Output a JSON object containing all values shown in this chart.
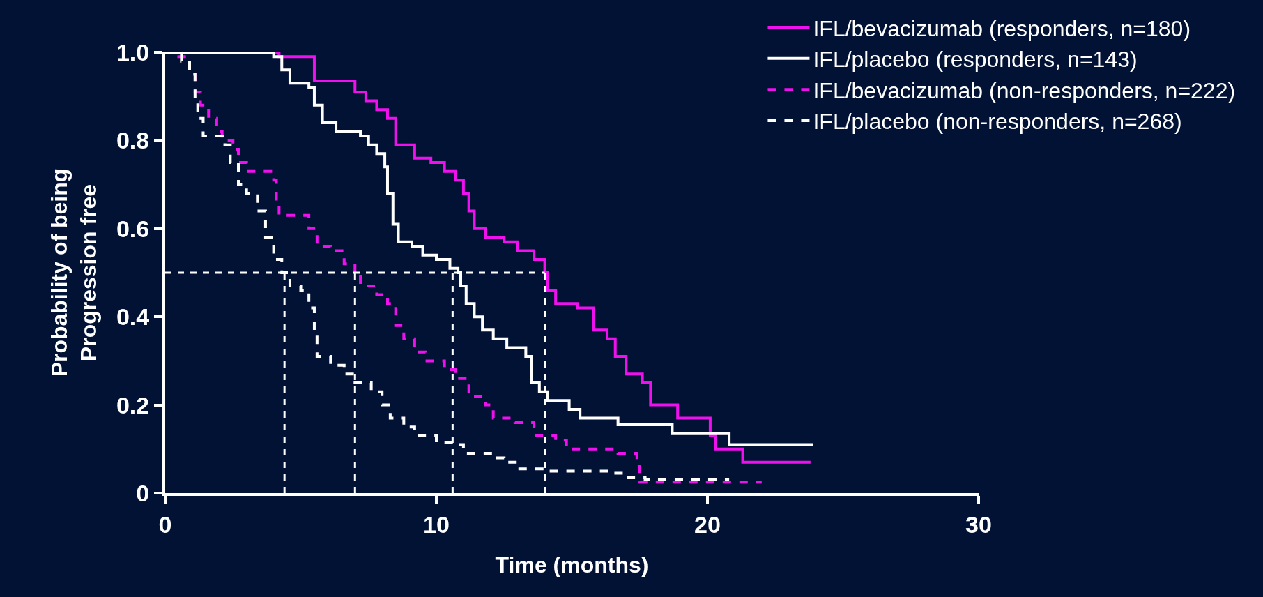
{
  "chart_data": {
    "type": "step",
    "xlabel": "Time (months)",
    "ylabel": "Probability of being\nProgression free",
    "xlim": [
      0,
      30
    ],
    "xticks": [
      0,
      10,
      20,
      30
    ],
    "ylim": [
      0,
      1.0
    ],
    "yticks": [
      0,
      0.2,
      0.4,
      0.6,
      0.8,
      {
        "value": 1.0,
        "label": "1.0"
      }
    ],
    "grid": false,
    "legend": "top right",
    "marker": "none",
    "series": [
      {
        "name": "IFL/bevacizumab (responders, n=180)",
        "color": "#ee11ee",
        "line_style": "solid",
        "x": [
          0,
          4.2,
          5.5,
          7.0,
          7.4,
          7.8,
          8.2,
          8.5,
          9.2,
          9.8,
          10.3,
          10.7,
          11.0,
          11.2,
          11.4,
          11.8,
          12.5,
          13.0,
          13.6,
          14.0,
          14.1,
          14.4,
          15.2,
          15.8,
          16.3,
          16.6,
          17.0,
          17.6,
          17.9,
          18.9,
          20.1,
          20.3,
          21.3,
          23.8
        ],
        "values": [
          1.0,
          0.99,
          0.935,
          0.91,
          0.89,
          0.87,
          0.85,
          0.79,
          0.76,
          0.75,
          0.73,
          0.71,
          0.68,
          0.64,
          0.6,
          0.58,
          0.57,
          0.55,
          0.53,
          0.5,
          0.46,
          0.43,
          0.42,
          0.37,
          0.35,
          0.31,
          0.27,
          0.25,
          0.2,
          0.17,
          0.13,
          0.1,
          0.07,
          0.07
        ]
      },
      {
        "name": "IFL/placebo (responders, n=143)",
        "color": "#ffffff",
        "line_style": "solid",
        "x": [
          0,
          4.0,
          4.3,
          4.6,
          5.3,
          5.5,
          5.8,
          6.3,
          7.2,
          7.5,
          7.8,
          8.1,
          8.2,
          8.4,
          8.6,
          9.1,
          9.5,
          10.0,
          10.5,
          10.8,
          10.9,
          11.1,
          11.4,
          11.7,
          12.1,
          12.6,
          13.3,
          13.5,
          13.8,
          14.1,
          14.9,
          15.3,
          16.7,
          18.7,
          20.8,
          23.9
        ],
        "values": [
          1.0,
          0.99,
          0.96,
          0.93,
          0.92,
          0.88,
          0.84,
          0.82,
          0.81,
          0.79,
          0.77,
          0.74,
          0.68,
          0.61,
          0.57,
          0.56,
          0.54,
          0.53,
          0.51,
          0.5,
          0.47,
          0.43,
          0.4,
          0.37,
          0.35,
          0.33,
          0.31,
          0.25,
          0.23,
          0.21,
          0.19,
          0.17,
          0.155,
          0.135,
          0.11,
          0.11
        ]
      },
      {
        "name": "IFL/bevacizumab (non-responders, n=222)",
        "color": "#ee11ee",
        "line_style": "dashed",
        "x": [
          0,
          0.5,
          0.9,
          1.1,
          1.3,
          1.6,
          1.9,
          2.1,
          2.5,
          2.7,
          3.0,
          4.0,
          4.1,
          4.2,
          5.3,
          5.6,
          6.1,
          6.6,
          7.0,
          7.2,
          7.8,
          8.2,
          8.5,
          8.8,
          9.2,
          9.6,
          10.3,
          10.7,
          11.2,
          11.8,
          12.1,
          12.9,
          13.6,
          14.4,
          14.8,
          16.7,
          17.4,
          17.5,
          22.0
        ],
        "values": [
          1.0,
          0.99,
          0.95,
          0.91,
          0.88,
          0.85,
          0.82,
          0.8,
          0.78,
          0.75,
          0.73,
          0.71,
          0.66,
          0.63,
          0.6,
          0.56,
          0.55,
          0.52,
          0.5,
          0.47,
          0.45,
          0.43,
          0.38,
          0.35,
          0.32,
          0.3,
          0.28,
          0.26,
          0.22,
          0.2,
          0.17,
          0.16,
          0.13,
          0.12,
          0.1,
          0.09,
          0.06,
          0.025,
          0.025
        ]
      },
      {
        "name": "IFL/placebo (non-responders, n=268)",
        "color": "#ffffff",
        "line_style": "dashed",
        "x": [
          0,
          0.6,
          0.9,
          1.1,
          1.2,
          1.4,
          2.2,
          2.4,
          2.7,
          3.0,
          3.4,
          3.7,
          4.0,
          4.3,
          4.6,
          5.0,
          5.3,
          5.5,
          5.6,
          6.1,
          6.6,
          7.0,
          7.6,
          8.0,
          8.3,
          8.8,
          9.2,
          10.0,
          10.7,
          11.0,
          12.0,
          12.5,
          13.0,
          14.0,
          16.5,
          16.9,
          17.7,
          20.8
        ],
        "values": [
          1.0,
          0.98,
          0.95,
          0.9,
          0.85,
          0.81,
          0.79,
          0.75,
          0.7,
          0.68,
          0.64,
          0.58,
          0.53,
          0.5,
          0.47,
          0.46,
          0.42,
          0.36,
          0.31,
          0.29,
          0.27,
          0.25,
          0.23,
          0.2,
          0.17,
          0.15,
          0.13,
          0.115,
          0.11,
          0.09,
          0.08,
          0.07,
          0.055,
          0.05,
          0.045,
          0.035,
          0.03,
          0.03
        ]
      }
    ],
    "ref_lines": [
      {
        "axis": "y",
        "value": 0.5,
        "color": "#ffffff",
        "line_style": "dashed"
      },
      {
        "axis": "x",
        "value": 4.4,
        "color": "#ffffff",
        "line_style": "dashed"
      },
      {
        "axis": "x",
        "value": 7.0,
        "color": "#ffffff",
        "line_style": "dashed"
      },
      {
        "axis": "x",
        "value": 10.6,
        "color": "#ffffff",
        "line_style": "dashed"
      },
      {
        "axis": "x",
        "value": 14.0,
        "color": "#ffffff",
        "line_style": "dashed"
      }
    ]
  }
}
